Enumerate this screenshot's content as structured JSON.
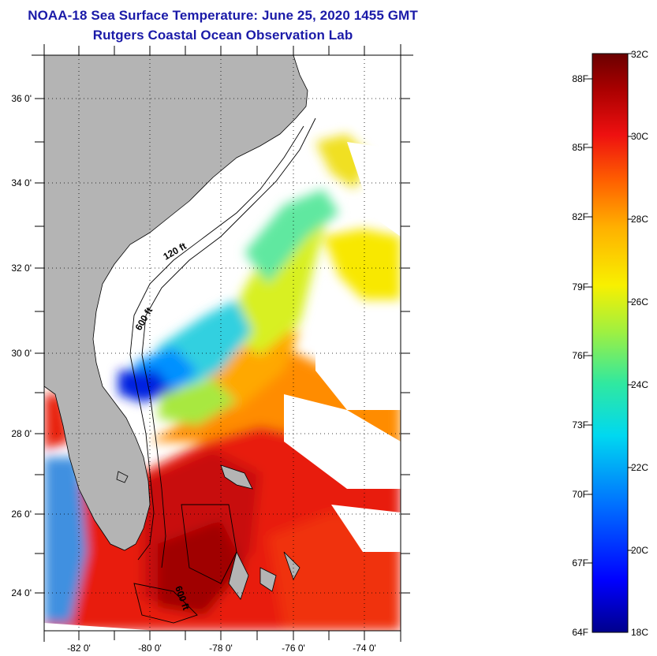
{
  "title": {
    "line1": "NOAA-18 Sea Surface Temperature:  June 25, 2020 1455 GMT",
    "line2": "Rutgers Coastal Ocean Observation Lab"
  },
  "map": {
    "lat_labels": [
      "36 0'",
      "34 0'",
      "32 0'",
      "30 0'",
      "28 0'",
      "26 0'",
      "24 0'"
    ],
    "lon_labels": [
      "-82 0'",
      "-80 0'",
      "-78 0'",
      "-76 0'",
      "-74 0'"
    ],
    "contour_labels": [
      "120 ft",
      "600 ft",
      "600 ft"
    ],
    "land_color": "#b4b4b4",
    "cloud_color": "#ffffff"
  },
  "colorbar": {
    "fahrenheit_labels": [
      "88F",
      "85F",
      "82F",
      "79F",
      "76F",
      "73F",
      "70F",
      "67F",
      "64F"
    ],
    "celsius_labels": [
      "32C",
      "30C",
      "28C",
      "26C",
      "24C",
      "22C",
      "20C",
      "18C"
    ],
    "range_c": [
      18,
      32
    ],
    "colors": [
      "#00008c",
      "#0000ff",
      "#0070ff",
      "#00d8f0",
      "#30e8a0",
      "#a0f040",
      "#f8f000",
      "#ffb000",
      "#ff6000",
      "#ee1010",
      "#a80000",
      "#6a0000"
    ]
  }
}
